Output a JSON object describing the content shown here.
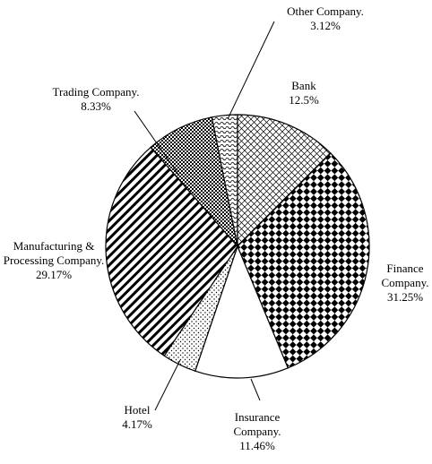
{
  "chart_data": {
    "type": "pie",
    "categories": [
      "Bank",
      "Finance Company.",
      "Insurance Company.",
      "Hotel",
      "Manufacturing & Processing Company.",
      "Trading Company.",
      "Other Company."
    ],
    "values": [
      12.5,
      31.25,
      11.46,
      4.17,
      29.17,
      8.33,
      3.12
    ],
    "value_labels": [
      "12.5%",
      "31.25%",
      "11.46%",
      "4.17%",
      "29.17%",
      "8.33%",
      "3.12%"
    ],
    "patterns": [
      "crosshatch",
      "diamonds",
      "none",
      "dots",
      "stripes",
      "checker",
      "wave"
    ]
  }
}
